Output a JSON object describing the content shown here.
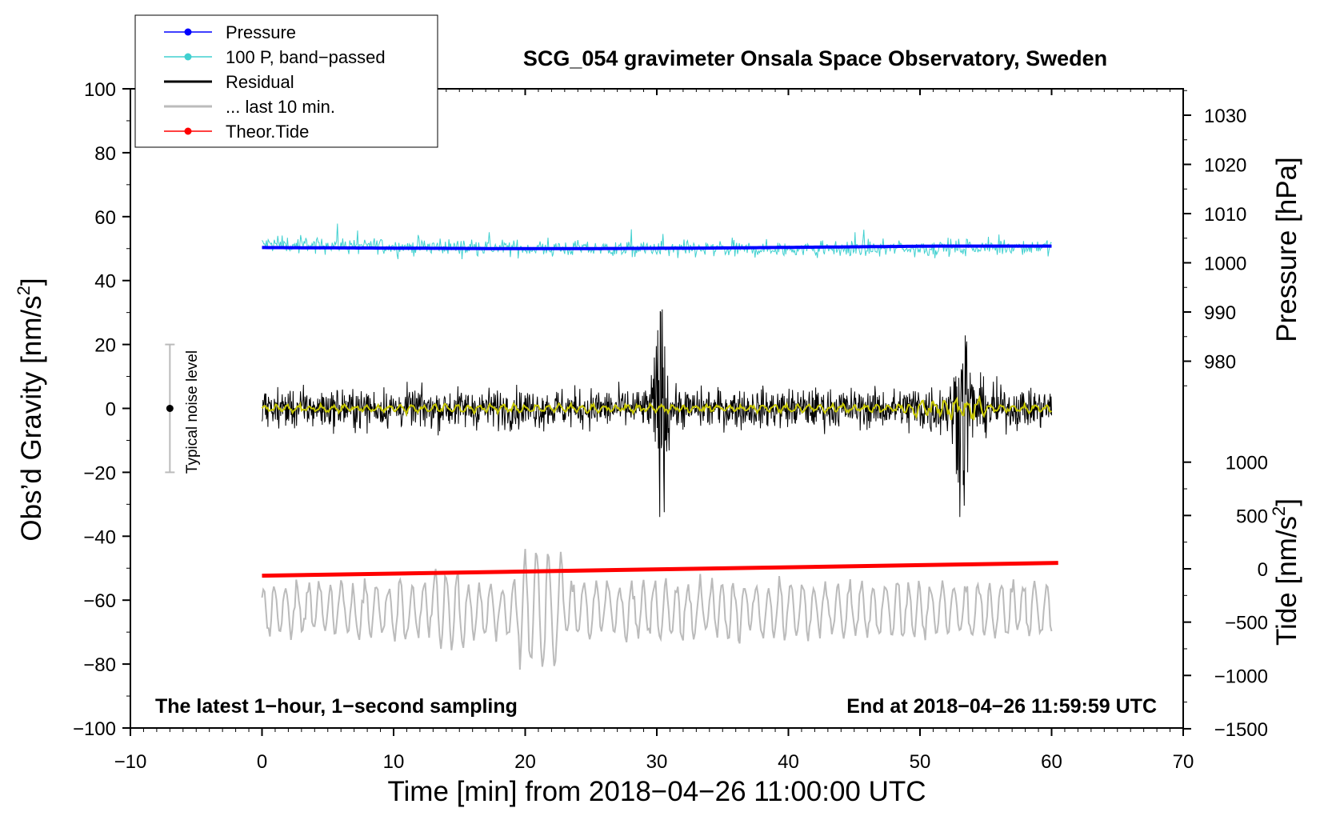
{
  "chart_data": {
    "type": "line",
    "title": "SCG_054 gravimeter Onsala Space Observatory, Sweden",
    "xlabel": "Time [min] from 2018−04−26 11:00:00 UTC",
    "ylabel_main": "Obs’d Gravity [nm/s",
    "ylabel_sup": "2",
    "ylabel_close": "]",
    "ylabel_pressure": "Pressure [hPa]",
    "ylabel_tide": "Tide [nm/s",
    "ylabel_tide_sup": "2",
    "ylabel_tide_close": "]",
    "xlim": [
      -10,
      70
    ],
    "ylim": [
      -100,
      100
    ],
    "pressure_axis": {
      "ticks": [
        980,
        990,
        1000,
        1010,
        1020,
        1030
      ]
    },
    "tide_axis": {
      "ticks": [
        -1500,
        -1000,
        -500,
        0,
        500,
        1000
      ]
    },
    "x_ticks": [
      -10,
      0,
      10,
      20,
      30,
      40,
      50,
      60,
      70
    ],
    "x_tick_labels": [
      "−10",
      "0",
      "10",
      "20",
      "30",
      "40",
      "50",
      "60",
      "70"
    ],
    "y_ticks": [
      -100,
      -80,
      -60,
      -40,
      -20,
      0,
      20,
      40,
      60,
      80,
      100
    ],
    "y_tick_labels": [
      "−100",
      "−80",
      "−60",
      "−40",
      "−20",
      "0",
      "20",
      "40",
      "60",
      "80",
      "100"
    ],
    "pressure_tick_labels": [
      "980",
      "990",
      "1000",
      "1010",
      "1020",
      "1030"
    ],
    "tide_tick_labels": [
      "−1500",
      "−1000",
      "−500",
      "0",
      "500",
      "1000"
    ],
    "legend": [
      {
        "name": "Pressure",
        "color": "#0000ff",
        "marker": true
      },
      {
        "name": "100 P, band−passed",
        "color": "#40d0d0",
        "marker": true
      },
      {
        "name": "Residual",
        "color": "#000000",
        "marker": false
      },
      {
        "name": "... last 10 min.",
        "color": "#bbbbbb",
        "marker": false
      },
      {
        "name": "Theor.Tide",
        "color": "#ff0000",
        "marker": true
      }
    ],
    "series": [
      {
        "name": "Pressure",
        "color": "#0000ff",
        "axis": "pressure",
        "x_range": [
          0,
          60
        ],
        "values_hPa": [
          1003.1,
          1003.0,
          1002.9,
          1002.9,
          1003.0,
          1003.2,
          1003.4,
          1003.4
        ]
      },
      {
        "name": "100 P, band-passed",
        "color": "#40d0d0",
        "axis": "gravity",
        "x_range": [
          0,
          60
        ],
        "mean": 51,
        "amplitude": 4
      },
      {
        "name": "Residual",
        "color": "#000000",
        "axis": "gravity",
        "x_range": [
          0,
          60
        ],
        "mean": 0,
        "amplitude": 8,
        "peaks": [
          {
            "x": 30.3,
            "max": 30,
            "min": -32
          },
          {
            "x": 53.3,
            "max": 20,
            "min": -24
          }
        ]
      },
      {
        "name": "Residual (smoothed)",
        "color": "#c8c800",
        "axis": "gravity",
        "x_range": [
          0,
          60
        ],
        "mean": 0,
        "amplitude": 1.5
      },
      {
        "name": "... last 10 min.",
        "color": "#bbbbbb",
        "axis": "gravity",
        "x_range": [
          0,
          60
        ],
        "mean": -63,
        "amplitude": 8,
        "min": -86,
        "max": -42
      },
      {
        "name": "Theor.Tide",
        "color": "#ff0000",
        "axis": "tide",
        "x_range": [
          0,
          60.5
        ],
        "values_nms2": [
          -65,
          55
        ]
      }
    ],
    "noise_bar": {
      "x": -7,
      "center": 0,
      "half_range": 20,
      "label": "Typical noise level"
    },
    "annotations": {
      "bottom_left": "The latest 1−hour, 1−second sampling",
      "bottom_right": "End at 2018−04−26 11:59:59 UTC"
    }
  }
}
